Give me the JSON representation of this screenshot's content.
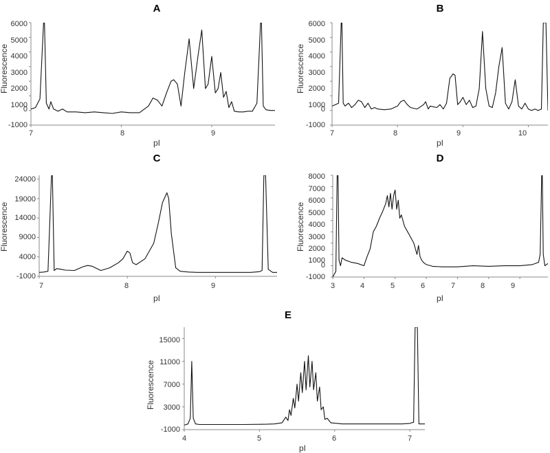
{
  "chart_data": [
    {
      "panel": "A",
      "type": "line",
      "xlabel": "pI",
      "ylabel": "Fluorescence",
      "xlim": [
        7.0,
        9.7
      ],
      "ylim": [
        -1000,
        6000
      ],
      "xticks": [
        7,
        8,
        9
      ],
      "yticks": [
        -1000,
        0,
        1000,
        2000,
        3000,
        4000,
        5000,
        6000
      ],
      "grid": false,
      "series": [
        {
          "x": [
            7.0,
            7.05,
            7.1,
            7.14,
            7.15,
            7.17,
            7.2,
            7.22,
            7.25,
            7.3,
            7.35,
            7.4,
            7.5,
            7.6,
            7.7,
            7.8,
            7.9,
            8.0,
            8.1,
            8.2,
            8.3,
            8.35,
            8.4,
            8.45,
            8.5,
            8.55,
            8.58,
            8.62,
            8.66,
            8.7,
            8.75,
            8.8,
            8.85,
            8.89,
            8.93,
            8.96,
            9.0,
            9.04,
            9.07,
            9.1,
            9.13,
            9.16,
            9.19,
            9.22,
            9.25,
            9.3,
            9.35,
            9.4,
            9.45,
            9.5,
            9.54,
            9.55,
            9.57,
            9.6,
            9.65,
            9.7
          ],
          "y": [
            100,
            200,
            800,
            6000,
            6000,
            500,
            100,
            600,
            100,
            -50,
            100,
            -100,
            -100,
            -150,
            -100,
            -150,
            -200,
            -100,
            -150,
            -150,
            300,
            850,
            700,
            300,
            1200,
            2000,
            2100,
            1800,
            300,
            2500,
            4900,
            1500,
            3800,
            5500,
            1500,
            1800,
            3700,
            1200,
            1500,
            2600,
            900,
            1300,
            200,
            600,
            -50,
            -100,
            -100,
            -50,
            -50,
            500,
            6000,
            6000,
            300,
            50,
            0,
            0
          ]
        }
      ]
    },
    {
      "panel": "B",
      "type": "line",
      "xlabel": "pI",
      "ylabel": "Fluorescence",
      "xlim": [
        7.0,
        10.3
      ],
      "ylim": [
        -1000,
        6000
      ],
      "xticks": [
        7,
        8,
        9,
        10
      ],
      "yticks": [
        -1000,
        0,
        1000,
        2000,
        3000,
        4000,
        5000,
        6000
      ],
      "grid": false,
      "series": [
        {
          "x": [
            7.0,
            7.05,
            7.1,
            7.14,
            7.15,
            7.17,
            7.2,
            7.25,
            7.3,
            7.35,
            7.4,
            7.45,
            7.5,
            7.55,
            7.6,
            7.65,
            7.7,
            7.8,
            7.9,
            8.0,
            8.05,
            8.1,
            8.15,
            8.2,
            8.3,
            8.4,
            8.43,
            8.47,
            8.5,
            8.6,
            8.65,
            8.7,
            8.75,
            8.8,
            8.85,
            8.88,
            8.92,
            8.96,
            9.0,
            9.05,
            9.1,
            9.15,
            9.2,
            9.25,
            9.3,
            9.35,
            9.4,
            9.45,
            9.5,
            9.55,
            9.6,
            9.65,
            9.7,
            9.75,
            9.8,
            9.85,
            9.9,
            9.95,
            10.0,
            10.05,
            10.1,
            10.15,
            10.2,
            10.23,
            10.27,
            10.3
          ],
          "y": [
            300,
            400,
            500,
            6000,
            6000,
            500,
            300,
            500,
            200,
            400,
            700,
            600,
            200,
            500,
            100,
            200,
            100,
            50,
            100,
            300,
            600,
            700,
            400,
            200,
            100,
            400,
            600,
            100,
            300,
            200,
            400,
            100,
            500,
            2200,
            2500,
            2400,
            400,
            600,
            900,
            400,
            700,
            200,
            300,
            1500,
            5400,
            1500,
            300,
            200,
            1200,
            3000,
            4300,
            500,
            100,
            600,
            2100,
            300,
            100,
            500,
            100,
            0,
            100,
            0,
            100,
            6000,
            6000,
            0
          ]
        }
      ]
    },
    {
      "panel": "C",
      "type": "line",
      "xlabel": "pI",
      "ylabel": "Fluorescence",
      "xlim": [
        7.0,
        9.7
      ],
      "ylim": [
        -1000,
        25000
      ],
      "xticks": [
        7,
        8,
        9
      ],
      "yticks": [
        -1000,
        4000,
        9000,
        14000,
        19000,
        24000
      ],
      "grid": false,
      "series": [
        {
          "x": [
            7.0,
            7.05,
            7.1,
            7.14,
            7.15,
            7.17,
            7.2,
            7.25,
            7.3,
            7.4,
            7.5,
            7.55,
            7.6,
            7.7,
            7.8,
            7.9,
            7.95,
            8.0,
            8.03,
            8.06,
            8.1,
            8.2,
            8.3,
            8.35,
            8.4,
            8.45,
            8.47,
            8.5,
            8.55,
            8.6,
            8.7,
            8.8,
            8.9,
            9.0,
            9.1,
            9.2,
            9.3,
            9.4,
            9.5,
            9.53,
            9.55,
            9.57,
            9.6,
            9.65,
            9.7
          ],
          "y": [
            0,
            100,
            300,
            25000,
            25000,
            500,
            1000,
            800,
            600,
            500,
            1500,
            1800,
            1600,
            500,
            1200,
            2500,
            3500,
            5500,
            5000,
            2500,
            2000,
            3500,
            7500,
            12500,
            18000,
            20500,
            19000,
            10000,
            1200,
            300,
            100,
            0,
            0,
            0,
            0,
            0,
            0,
            0,
            200,
            500,
            25000,
            25000,
            800,
            0,
            0
          ]
        }
      ]
    },
    {
      "panel": "D",
      "type": "line",
      "xlabel": "pI",
      "ylabel": "Fluorescence",
      "xlim": [
        3.0,
        9.9
      ],
      "ylim": [
        -1000,
        8000
      ],
      "xticks": [
        3,
        4,
        5,
        6,
        7,
        8,
        9
      ],
      "yticks": [
        -1000,
        0,
        1000,
        2000,
        3000,
        4000,
        5000,
        6000,
        7000,
        8000
      ],
      "grid": false,
      "series": [
        {
          "x": [
            3.0,
            3.1,
            3.14,
            3.17,
            3.2,
            3.25,
            3.3,
            3.4,
            3.6,
            3.8,
            4.0,
            4.1,
            4.2,
            4.3,
            4.4,
            4.5,
            4.6,
            4.7,
            4.75,
            4.8,
            4.85,
            4.9,
            4.95,
            5.0,
            5.05,
            5.1,
            5.15,
            5.2,
            5.3,
            5.4,
            5.5,
            5.6,
            5.7,
            5.75,
            5.8,
            5.85,
            5.9,
            6.0,
            6.2,
            6.5,
            7.0,
            7.5,
            8.0,
            8.5,
            9.0,
            9.4,
            9.6,
            9.65,
            9.7,
            9.72,
            9.75,
            9.8,
            9.9
          ],
          "y": [
            -1000,
            -500,
            8000,
            8000,
            500,
            0,
            700,
            500,
            300,
            200,
            0,
            800,
            1500,
            3000,
            3500,
            4200,
            4800,
            5500,
            6200,
            5200,
            6400,
            5000,
            6200,
            6700,
            5000,
            5800,
            4200,
            4500,
            3500,
            3000,
            2500,
            2000,
            1000,
            1800,
            800,
            500,
            300,
            100,
            -50,
            -100,
            -100,
            0,
            -50,
            0,
            0,
            100,
            300,
            1000,
            8000,
            8000,
            1000,
            0,
            200
          ]
        }
      ]
    },
    {
      "panel": "E",
      "type": "line",
      "xlabel": "pI",
      "ylabel": "Fluorescence",
      "xlim": [
        4.0,
        7.2
      ],
      "ylim": [
        -1000,
        17000
      ],
      "xticks": [
        4,
        5,
        6,
        7
      ],
      "yticks": [
        -1000,
        3000,
        7000,
        11000,
        15000
      ],
      "grid": false,
      "series": [
        {
          "x": [
            4.0,
            4.05,
            4.08,
            4.1,
            4.12,
            4.15,
            4.2,
            4.5,
            4.8,
            5.1,
            5.2,
            5.3,
            5.35,
            5.38,
            5.4,
            5.42,
            5.45,
            5.47,
            5.5,
            5.52,
            5.55,
            5.57,
            5.6,
            5.62,
            5.65,
            5.67,
            5.7,
            5.72,
            5.75,
            5.77,
            5.8,
            5.82,
            5.85,
            5.87,
            5.9,
            5.95,
            6.1,
            6.5,
            6.9,
            7.0,
            7.05,
            7.07,
            7.08,
            7.1,
            7.12,
            7.2
          ],
          "y": [
            -200,
            0,
            1000,
            11000,
            1000,
            0,
            -100,
            -100,
            -100,
            -50,
            0,
            200,
            1200,
            600,
            2500,
            1500,
            4500,
            2800,
            7000,
            4000,
            9000,
            5500,
            11000,
            6000,
            12000,
            6500,
            11000,
            6000,
            9000,
            4000,
            6500,
            2500,
            3000,
            800,
            1000,
            200,
            0,
            0,
            0,
            100,
            300,
            17000,
            17000,
            17000,
            0,
            0
          ]
        }
      ]
    }
  ],
  "panels": {
    "a": {
      "letter": "A",
      "xlabel": "pI",
      "ylabel": "Fluorescence",
      "yticks": [
        "6000",
        "5000",
        "4000",
        "3000",
        "2000",
        "1000",
        "0",
        "-1000"
      ],
      "xticks": [
        "7",
        "8",
        "9"
      ]
    },
    "b": {
      "letter": "B",
      "xlabel": "pI",
      "ylabel": "Fluorescence",
      "yticks": [
        "6000",
        "5000",
        "4000",
        "3000",
        "2000",
        "1000",
        "0",
        "-1000"
      ],
      "xticks": [
        "7",
        "8",
        "9",
        "10"
      ]
    },
    "c": {
      "letter": "C",
      "xlabel": "pI",
      "ylabel": "Fluorescence",
      "yticks": [
        "24000",
        "19000",
        "14000",
        "9000",
        "4000",
        "-1000"
      ],
      "xticks": [
        "7",
        "8",
        "9"
      ]
    },
    "d": {
      "letter": "D",
      "xlabel": "pI",
      "ylabel": "Fluorescence",
      "yticks": [
        "8000",
        "7000",
        "6000",
        "5000",
        "4000",
        "3000",
        "2000",
        "1000",
        "0",
        "-1000"
      ],
      "xticks": [
        "3",
        "4",
        "5",
        "6",
        "7",
        "8",
        "9"
      ]
    },
    "e": {
      "letter": "E",
      "xlabel": "pI",
      "ylabel": "Fluorescence",
      "yticks": [
        "15000",
        "11000",
        "7000",
        "3000",
        "-1000"
      ],
      "xticks": [
        "4",
        "5",
        "6",
        "7"
      ]
    }
  },
  "colors": {
    "line": "#111111",
    "axis": "#888888",
    "text": "#333333"
  }
}
